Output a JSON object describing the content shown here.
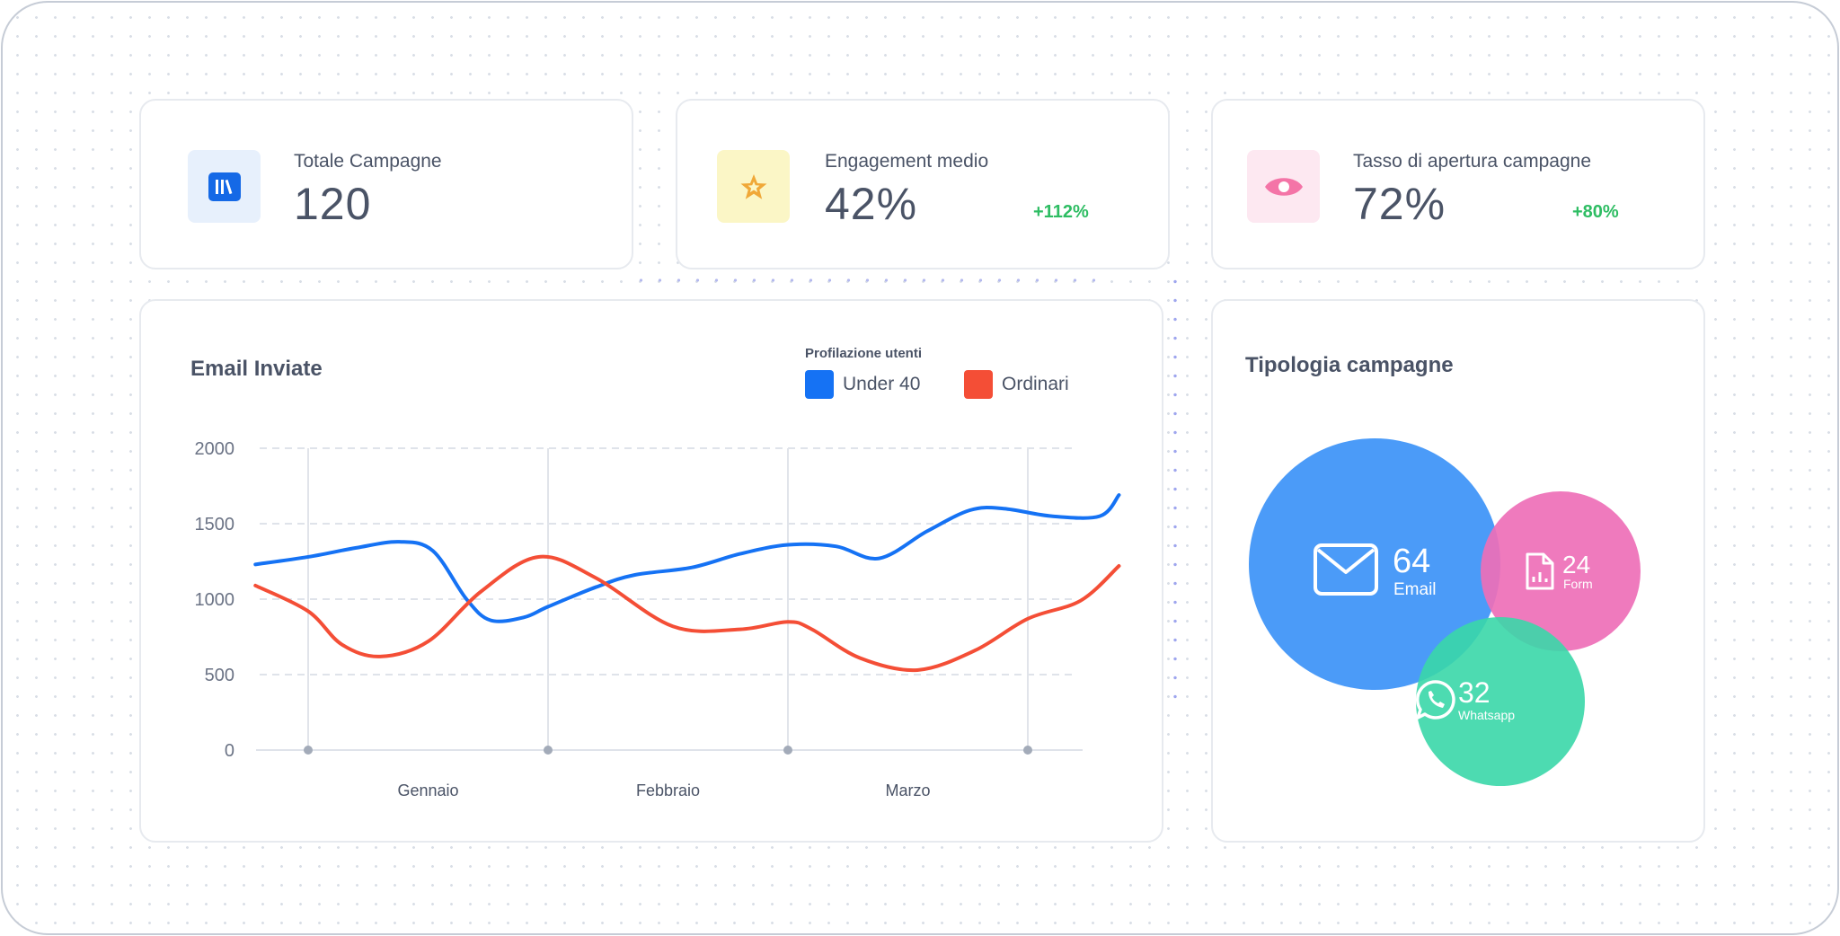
{
  "stats": [
    {
      "label": "Totale Campagne",
      "value": "120",
      "delta": "",
      "icon": "books-icon",
      "icon_bg": "#e7f0fc",
      "icon_color": "#1569e6"
    },
    {
      "label": "Engagement medio",
      "value": "42%",
      "delta": "+112%",
      "icon": "star-icon",
      "icon_bg": "#fbf6c6",
      "icon_color": "#f0a838"
    },
    {
      "label": "Tasso di apertura campagne",
      "value": "72%",
      "delta": "+80%",
      "icon": "eye-icon",
      "icon_bg": "#fde8f1",
      "icon_color": "#f474a7"
    }
  ],
  "email_chart": {
    "title": "Email Inviate",
    "legend_title": "Profilazione utenti",
    "legend": [
      {
        "label": "Under 40",
        "color": "#1572f4"
      },
      {
        "label": "Ordinari",
        "color": "#f44e36"
      }
    ]
  },
  "chart_data": {
    "type": "line",
    "categories": [
      "Gennaio",
      "Febbraio",
      "Marzo"
    ],
    "yticks": [
      "2000",
      "1500",
      "1000",
      "500",
      "0"
    ],
    "ylim": [
      0,
      2000
    ],
    "xlim": [
      0,
      3.5
    ],
    "grid": true,
    "series": [
      {
        "name": "Under 40",
        "color": "#1572f4",
        "points": [
          [
            -0.22,
            1230
          ],
          [
            0,
            1280
          ],
          [
            0.2,
            1340
          ],
          [
            0.38,
            1380
          ],
          [
            0.52,
            1320
          ],
          [
            0.66,
            1000
          ],
          [
            0.76,
            860
          ],
          [
            0.9,
            880
          ],
          [
            1.0,
            950
          ],
          [
            1.2,
            1080
          ],
          [
            1.36,
            1160
          ],
          [
            1.6,
            1210
          ],
          [
            1.8,
            1300
          ],
          [
            2.0,
            1360
          ],
          [
            2.2,
            1350
          ],
          [
            2.38,
            1270
          ],
          [
            2.58,
            1450
          ],
          [
            2.76,
            1590
          ],
          [
            2.9,
            1600
          ],
          [
            3.1,
            1550
          ],
          [
            3.3,
            1550
          ],
          [
            3.38,
            1690
          ]
        ]
      },
      {
        "name": "Ordinari",
        "color": "#f44e36",
        "points": [
          [
            -0.22,
            1090
          ],
          [
            0,
            920
          ],
          [
            0.14,
            700
          ],
          [
            0.3,
            620
          ],
          [
            0.5,
            720
          ],
          [
            0.72,
            1050
          ],
          [
            0.96,
            1280
          ],
          [
            1.2,
            1140
          ],
          [
            1.52,
            820
          ],
          [
            1.8,
            800
          ],
          [
            2.0,
            850
          ],
          [
            2.1,
            800
          ],
          [
            2.3,
            610
          ],
          [
            2.54,
            530
          ],
          [
            2.78,
            660
          ],
          [
            3.0,
            870
          ],
          [
            3.22,
            990
          ],
          [
            3.38,
            1220
          ]
        ]
      }
    ]
  },
  "bubbles": {
    "title": "Tipologia campagne",
    "items": [
      {
        "value": "64",
        "label": "Email",
        "icon": "envelope-icon",
        "color": "#3d93f8"
      },
      {
        "value": "24",
        "label": "Form",
        "icon": "document-chart-icon",
        "color": "#ee6fb7"
      },
      {
        "value": "32",
        "label": "Whatsapp",
        "icon": "whatsapp-icon",
        "color": "#3ad7a8"
      }
    ]
  }
}
